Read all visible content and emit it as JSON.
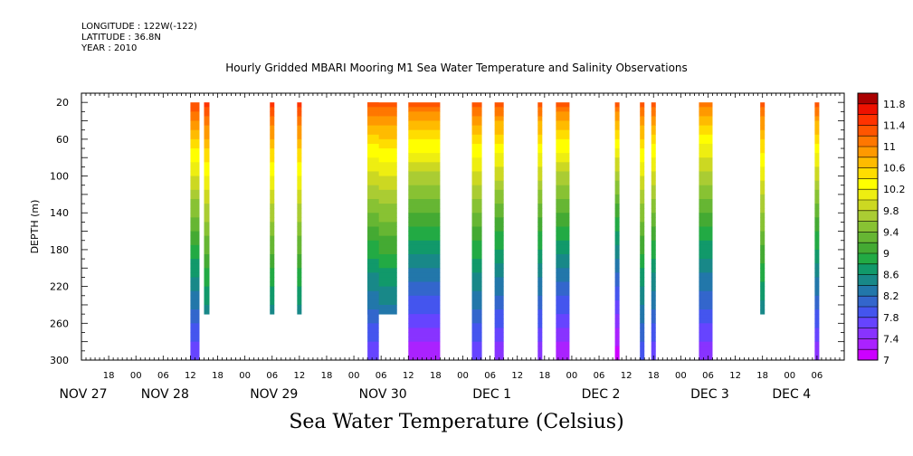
{
  "header": {
    "longitude": "LONGITUDE : 122W(-122)",
    "latitude": "LATITUDE : 36.8N",
    "year": "YEAR : 2010"
  },
  "title": "Hourly Gridded MBARI Mooring M1 Sea Water Temperature and Salinity Observations",
  "variable_label": "Sea Water Temperature (Celsius)",
  "chart_data": {
    "type": "heatmap",
    "title": "Hourly Gridded MBARI Mooring M1 Sea Water Temperature and Salinity Observations",
    "xlabel": "",
    "ylabel": "DEPTH (m)",
    "colorbar_label": "Sea Water Temperature (Celsius)",
    "x_unit": "hours since Nov 27 00:00, 2010",
    "xlim": [
      12,
      180
    ],
    "ylim": [
      300,
      0
    ],
    "y_axis_min_shown": 10,
    "y_ticks": [
      20,
      60,
      100,
      140,
      180,
      220,
      260,
      300
    ],
    "x_tick_hours": [
      18,
      24,
      30,
      36,
      42,
      48,
      54,
      60,
      66,
      72,
      78,
      84,
      90,
      96,
      102,
      108,
      114,
      120,
      126,
      132,
      138,
      144,
      150,
      156,
      162,
      168,
      174
    ],
    "x_tick_labels": [
      "18",
      "00",
      "06",
      "12",
      "18",
      "00",
      "06",
      "12",
      "18",
      "00",
      "06",
      "12",
      "18",
      "00",
      "06",
      "12",
      "18",
      "00",
      "06",
      "12",
      "18",
      "00",
      "06",
      "12",
      "18",
      "00",
      "06"
    ],
    "date_labels": [
      {
        "label": "NOV 27",
        "hour": 12
      },
      {
        "label": "NOV 28",
        "hour": 30
      },
      {
        "label": "NOV 29",
        "hour": 54
      },
      {
        "label": "NOV 30",
        "hour": 78
      },
      {
        "label": "DEC  1",
        "hour": 102
      },
      {
        "label": "DEC  2",
        "hour": 126
      },
      {
        "label": "DEC  3",
        "hour": 150
      },
      {
        "label": "DEC  4",
        "hour": 168
      }
    ],
    "colorbar": {
      "levels": [
        7,
        7.2,
        7.4,
        7.6,
        7.8,
        8,
        8.2,
        8.4,
        8.6,
        8.8,
        9,
        9.2,
        9.4,
        9.6,
        9.8,
        10,
        10.2,
        10.4,
        10.6,
        10.8,
        11,
        11.2,
        11.4,
        11.6,
        11.8,
        12
      ],
      "labels": [
        "7",
        "7.4",
        "7.8",
        "8.2",
        "8.6",
        "9",
        "9.4",
        "9.8",
        "10.2",
        "10.6",
        "11",
        "11.4",
        "11.8"
      ],
      "colors": [
        "#cc00ff",
        "#aa22ff",
        "#8833ff",
        "#6644ff",
        "#4455ee",
        "#3366cc",
        "#2277aa",
        "#188888",
        "#11996a",
        "#22aa44",
        "#44aa33",
        "#66b633",
        "#88c233",
        "#aacc33",
        "#ccd822",
        "#eeee11",
        "#ffff00",
        "#ffdd00",
        "#ffbb00",
        "#ff9900",
        "#ff7700",
        "#ff5500",
        "#ff3300",
        "#ee1100",
        "#aa0000"
      ]
    },
    "data_segments": [
      {
        "t0": 36.0,
        "t1": 38.0,
        "zmax": 300,
        "surface": 11.5,
        "bottom": 7.6
      },
      {
        "t0": 39.0,
        "t1": 40.2,
        "zmax": 250,
        "surface": 11.6,
        "bottom": 8.0
      },
      {
        "t0": 53.5,
        "t1": 54.5,
        "zmax": 250,
        "surface": 11.6,
        "bottom": 8.0
      },
      {
        "t0": 59.5,
        "t1": 60.5,
        "zmax": 250,
        "surface": 11.6,
        "bottom": 8.0
      },
      {
        "t0": 75.0,
        "t1": 81.5,
        "zmax": 250,
        "surface": 11.4,
        "bottom": 7.8
      },
      {
        "t0": 75.0,
        "t1": 77.5,
        "zmax": 300,
        "surface": 11.4,
        "bottom": 7.6
      },
      {
        "t0": 84.0,
        "t1": 91.0,
        "zmax": 300,
        "surface": 11.4,
        "bottom": 7.2
      },
      {
        "t0": 98.0,
        "t1": 100.2,
        "zmax": 300,
        "surface": 11.4,
        "bottom": 7.6
      },
      {
        "t0": 103.0,
        "t1": 105.0,
        "zmax": 300,
        "surface": 11.4,
        "bottom": 7.4
      },
      {
        "t0": 112.5,
        "t1": 113.5,
        "zmax": 300,
        "surface": 11.4,
        "bottom": 7.4
      },
      {
        "t0": 116.5,
        "t1": 119.5,
        "zmax": 300,
        "surface": 11.4,
        "bottom": 7.2
      },
      {
        "t0": 129.5,
        "t1": 130.5,
        "zmax": 300,
        "surface": 11.4,
        "bottom": 7.0
      },
      {
        "t0": 135.0,
        "t1": 136.0,
        "zmax": 300,
        "surface": 11.4,
        "bottom": 7.8
      },
      {
        "t0": 137.5,
        "t1": 138.5,
        "zmax": 300,
        "surface": 11.4,
        "bottom": 7.6
      },
      {
        "t0": 148.0,
        "t1": 151.0,
        "zmax": 300,
        "surface": 11.2,
        "bottom": 7.4
      },
      {
        "t0": 161.5,
        "t1": 162.5,
        "zmax": 250,
        "surface": 11.4,
        "bottom": 8.0
      },
      {
        "t0": 173.5,
        "t1": 174.5,
        "zmax": 300,
        "surface": 11.4,
        "bottom": 7.4
      }
    ]
  }
}
